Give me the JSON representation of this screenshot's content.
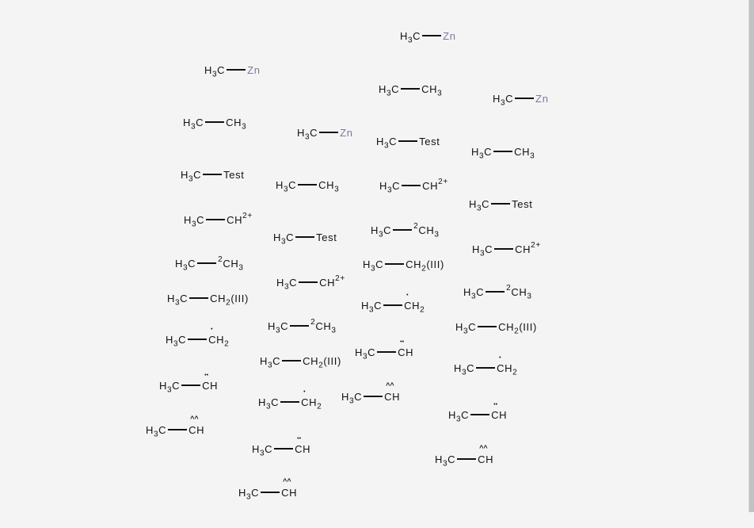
{
  "molecules": [
    {
      "left": "H3C",
      "right": "Zn",
      "kind": "metal"
    },
    {
      "left": "H3C",
      "right": "Zn",
      "kind": "metal"
    },
    {
      "left": "H3C",
      "right": "CH3",
      "kind": "plain"
    },
    {
      "left": "H3C",
      "right": "Zn",
      "kind": "metal"
    },
    {
      "left": "H3C",
      "right": "CH3",
      "kind": "plain"
    },
    {
      "left": "H3C",
      "right": "Zn",
      "kind": "metal"
    },
    {
      "left": "H3C",
      "right": "Test",
      "kind": "plain"
    },
    {
      "left": "H3C",
      "right": "CH3",
      "kind": "plain"
    },
    {
      "left": "H3C",
      "right": "Test",
      "kind": "plain"
    },
    {
      "left": "H3C",
      "right": "CH3",
      "kind": "plain"
    },
    {
      "left": "H3C",
      "right": "CH",
      "sup": "2+",
      "kind": "charged"
    },
    {
      "left": "H3C",
      "right": "Test",
      "kind": "plain"
    },
    {
      "left": "H3C",
      "right": "CH",
      "sup": "2+",
      "kind": "charged"
    },
    {
      "left": "H3C",
      "right": "Test",
      "kind": "plain"
    },
    {
      "left": "H3C",
      "right": "CH3",
      "pre": "2",
      "kind": "isotope"
    },
    {
      "left": "H3C",
      "right": "CH",
      "sup": "2+",
      "kind": "charged"
    },
    {
      "left": "H3C",
      "right": "CH3",
      "pre": "2",
      "kind": "isotope"
    },
    {
      "left": "H3C",
      "right": "CH2(III)",
      "kind": "plain"
    },
    {
      "left": "H3C",
      "right": "CH",
      "sup": "2+",
      "kind": "charged"
    },
    {
      "left": "H3C",
      "right": "CH3",
      "pre": "2",
      "kind": "isotope"
    },
    {
      "left": "H3C",
      "right": "CH2(III)",
      "kind": "plain"
    },
    {
      "left": "H3C",
      "right": "CH2",
      "mark": "•",
      "kind": "radical"
    },
    {
      "left": "H3C",
      "right": "CH3",
      "pre": "2",
      "kind": "isotope"
    },
    {
      "left": "H3C",
      "right": "CH2(III)",
      "kind": "plain"
    },
    {
      "left": "H3C",
      "right": "CH2",
      "mark": "•",
      "kind": "radical"
    },
    {
      "left": "H3C",
      "right": "CH",
      "mark": "••",
      "kind": "radical"
    },
    {
      "left": "H3C",
      "right": "CH2(III)",
      "kind": "plain"
    },
    {
      "left": "H3C",
      "right": "CH2",
      "mark": "•",
      "kind": "radical"
    },
    {
      "left": "H3C",
      "right": "CH",
      "mark": "••",
      "kind": "radical"
    },
    {
      "left": "H3C",
      "right": "CH",
      "mark": "^^",
      "kind": "triplet"
    },
    {
      "left": "H3C",
      "right": "CH2",
      "mark": "•",
      "kind": "radical"
    },
    {
      "left": "H3C",
      "right": "CH",
      "mark": "••",
      "kind": "radical"
    },
    {
      "left": "H3C",
      "right": "CH",
      "mark": "^^",
      "kind": "triplet"
    },
    {
      "left": "H3C",
      "right": "CH",
      "mark": "••",
      "kind": "radical"
    },
    {
      "left": "H3C",
      "right": "CH",
      "mark": "^^",
      "kind": "triplet"
    },
    {
      "left": "H3C",
      "right": "CH",
      "mark": "^^",
      "kind": "triplet"
    }
  ]
}
